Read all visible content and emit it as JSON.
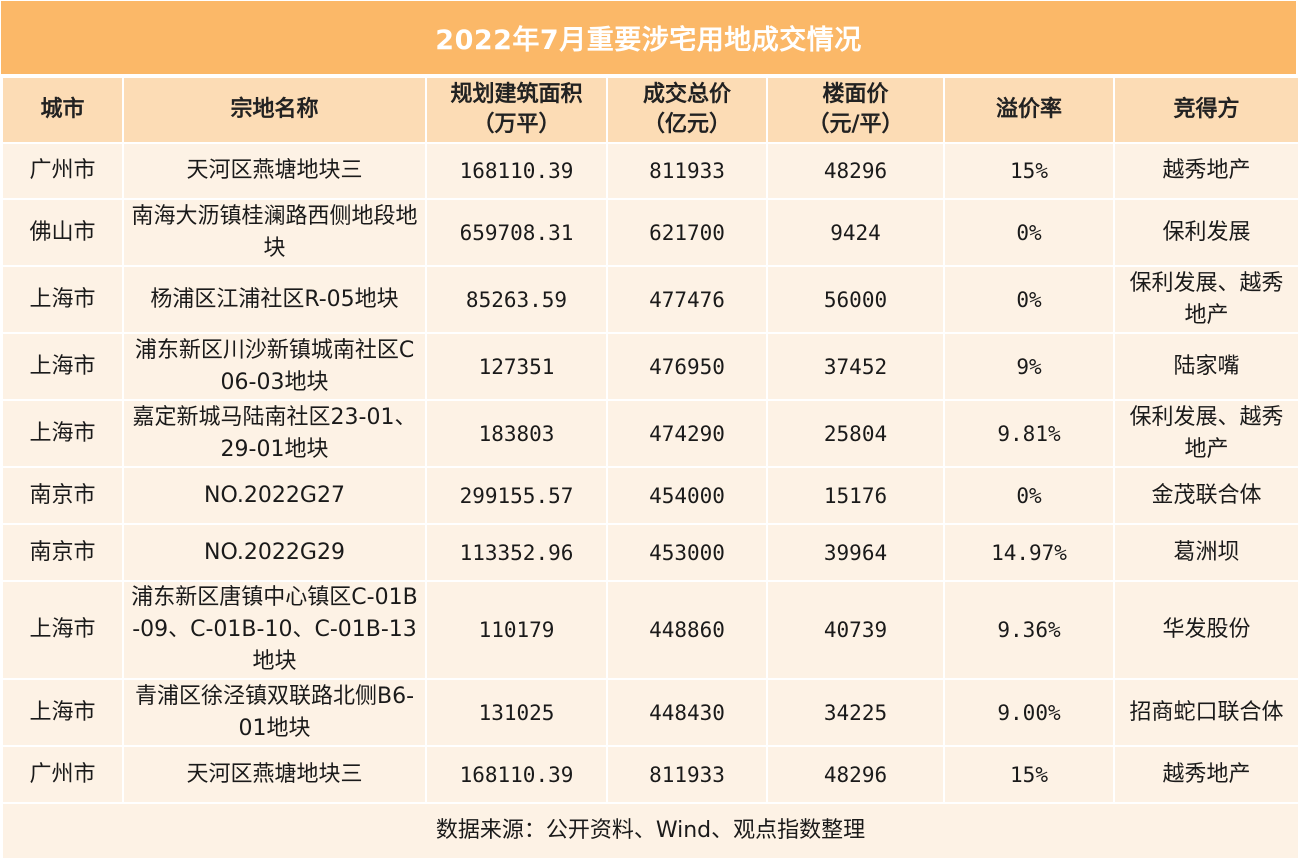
{
  "title": "2022年7月重要涉宅用地成交情况",
  "headers": {
    "city": "城市",
    "parcel": "宗地名称",
    "area_line1": "规划建筑面积",
    "area_line2": "（万平）",
    "total_line1": "成交总价",
    "total_line2": "（亿元）",
    "unit_line1": "楼面价",
    "unit_line2": "（元/平）",
    "premium": "溢价率",
    "winner": "竞得方"
  },
  "rows": [
    {
      "city": "广州市",
      "parcel": "天河区燕塘地块三",
      "area": "168110.39",
      "total": "811933",
      "unit": "48296",
      "premium": "15%",
      "winner": "越秀地产"
    },
    {
      "city": "佛山市",
      "parcel": "南海大沥镇桂澜路西侧地段地块",
      "area": "659708.31",
      "total": "621700",
      "unit": "9424",
      "premium": "0%",
      "winner": "保利发展"
    },
    {
      "city": "上海市",
      "parcel": "杨浦区江浦社区R-05地块",
      "area": "85263.59",
      "total": "477476",
      "unit": "56000",
      "premium": "0%",
      "winner": "保利发展、越秀地产"
    },
    {
      "city": "上海市",
      "parcel": "浦东新区川沙新镇城南社区C06-03地块",
      "area": "127351",
      "total": "476950",
      "unit": "37452",
      "premium": "9%",
      "winner": "陆家嘴"
    },
    {
      "city": "上海市",
      "parcel": "嘉定新城马陆南社区23-01、29-01地块",
      "area": "183803",
      "total": "474290",
      "unit": "25804",
      "premium": "9.81%",
      "winner": "保利发展、越秀地产"
    },
    {
      "city": "南京市",
      "parcel": "NO.2022G27",
      "area": "299155.57",
      "total": "454000",
      "unit": "15176",
      "premium": "0%",
      "winner": "金茂联合体"
    },
    {
      "city": "南京市",
      "parcel": "NO.2022G29",
      "area": "113352.96",
      "total": "453000",
      "unit": "39964",
      "premium": "14.97%",
      "winner": "葛洲坝"
    },
    {
      "city": "上海市",
      "parcel": "浦东新区唐镇中心镇区C-01B-09、C-01B-10、C-01B-13地块",
      "area": "110179",
      "total": "448860",
      "unit": "40739",
      "premium": "9.36%",
      "winner": "华发股份"
    },
    {
      "city": "上海市",
      "parcel": "青浦区徐泾镇双联路北侧B6-01地块",
      "area": "131025",
      "total": "448430",
      "unit": "34225",
      "premium": "9.00%",
      "winner": "招商蛇口联合体"
    },
    {
      "city": "广州市",
      "parcel": "天河区燕塘地块三",
      "area": "168110.39",
      "total": "811933",
      "unit": "48296",
      "premium": "15%",
      "winner": "越秀地产"
    }
  ],
  "footer": "数据来源：公开资料、Wind、观点指数整理",
  "colors": {
    "title_bg": "#fbb868",
    "header_bg": "#fcdcb5",
    "row_bg": "#fdf2e5"
  }
}
